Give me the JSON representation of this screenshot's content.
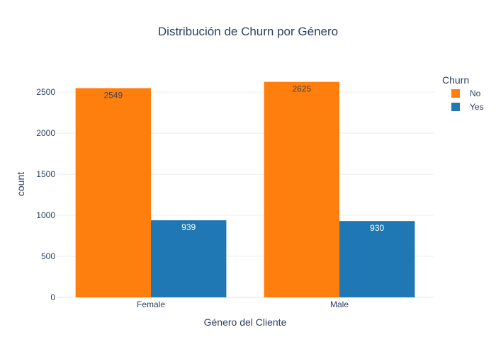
{
  "chart_data": {
    "type": "bar",
    "title": "Distribución de Churn por Género",
    "xlabel": "Género del Cliente",
    "ylabel": "count",
    "categories": [
      "Female",
      "Male"
    ],
    "ylim": [
      0,
      2760
    ],
    "yticks": [
      0,
      500,
      1000,
      1500,
      2000,
      2500
    ],
    "grid": true,
    "legend": {
      "title": "Churn",
      "placement": "top-right"
    },
    "series": [
      {
        "name": "No",
        "values": [
          2549,
          2625
        ],
        "color": "#ff7f0e",
        "label_color": "#444444"
      },
      {
        "name": "Yes",
        "values": [
          939,
          930
        ],
        "color": "#1f77b4",
        "label_color": "#ffffff"
      }
    ]
  }
}
